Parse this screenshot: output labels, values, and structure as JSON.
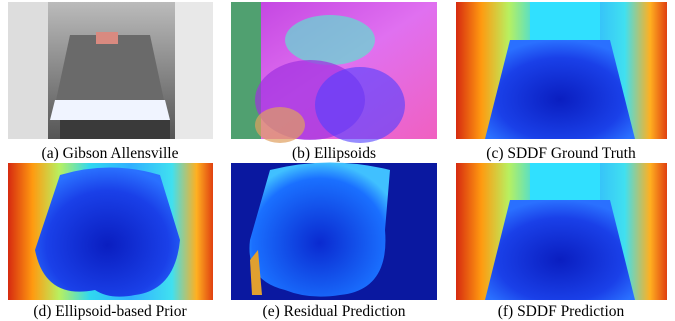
{
  "panels": [
    {
      "caption": "(a) Gibson Allensville"
    },
    {
      "caption": "(b) Ellipsoids"
    },
    {
      "caption": "(c) SDDF Ground Truth"
    },
    {
      "caption": "(d) Ellipsoid-based Prior"
    },
    {
      "caption": "(e) Residual Prediction"
    },
    {
      "caption": "(f) SDDF Prediction"
    }
  ]
}
